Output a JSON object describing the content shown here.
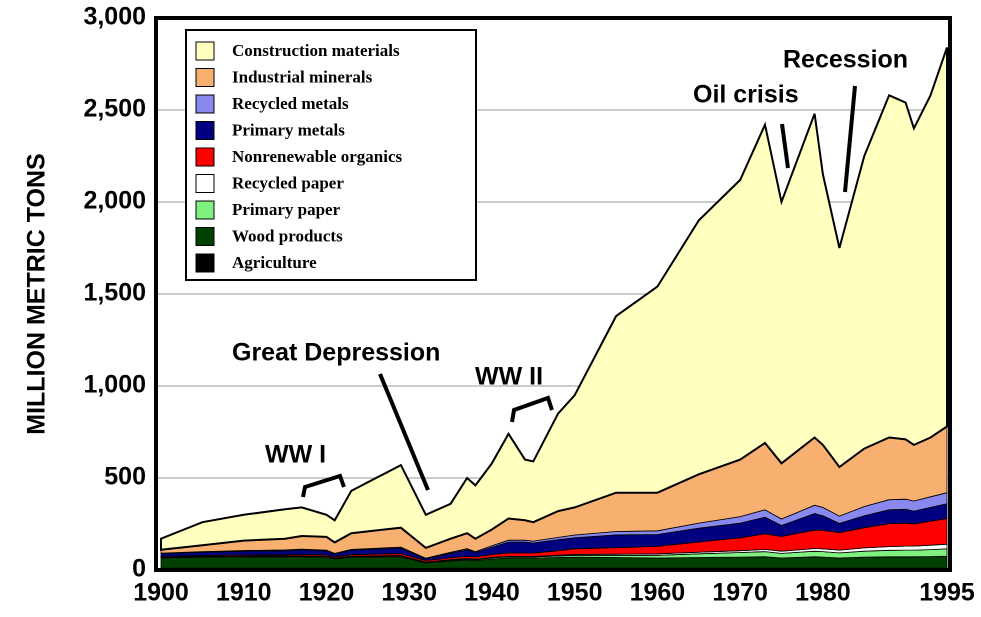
{
  "chart_data": {
    "type": "stacked-area",
    "y_label": "MILLION METRIC TONS",
    "x": [
      1900,
      1905,
      1910,
      1915,
      1917,
      1920,
      1921,
      1923,
      1929,
      1932,
      1935,
      1937,
      1938,
      1940,
      1942,
      1944,
      1945,
      1948,
      1950,
      1955,
      1960,
      1965,
      1970,
      1973,
      1975,
      1979,
      1980,
      1982,
      1985,
      1988,
      1990,
      1991,
      1993,
      1995
    ],
    "xlim": [
      1900,
      1995
    ],
    "xticks": [
      1900,
      1910,
      1920,
      1930,
      1940,
      1950,
      1960,
      1970,
      1980,
      1995
    ],
    "ylim": [
      0,
      3000
    ],
    "yticks": [
      0,
      500,
      {
        "value": 1000,
        "label": "1,000"
      },
      {
        "value": 1500,
        "label": "1,500"
      },
      {
        "value": 2000,
        "label": "2,000"
      },
      {
        "value": 2500,
        "label": "2,500"
      },
      {
        "value": 3000,
        "label": "3,000"
      }
    ],
    "grid": true,
    "legend": "upper left",
    "series": [
      {
        "name": "Construction materials",
        "color": "#ffffc0",
        "values": [
          60,
          125,
          140,
          160,
          155,
          120,
          120,
          230,
          340,
          180,
          190,
          300,
          290,
          360,
          460,
          330,
          330,
          530,
          610,
          960,
          1120,
          1380,
          1520,
          1730,
          1420,
          1760,
          1470,
          1190,
          1590,
          1860,
          1830,
          1720,
          1860,
          2060
        ]
      },
      {
        "name": "Industrial minerals",
        "color": "#f8b070",
        "values": [
          18,
          35,
          54,
          61,
          72,
          72,
          60,
          88,
          106,
          56,
          74,
          84,
          70,
          88,
          118,
          108,
          103,
          143,
          150,
          211,
          207,
          265,
          310,
          363,
          303,
          368,
          340,
          267,
          315,
          338,
          325,
          305,
          322,
          360
        ]
      },
      {
        "name": "Recycled metals",
        "color": "#8888ee",
        "values": [
          3,
          3,
          4,
          4,
          4,
          4,
          3,
          4,
          5,
          3,
          5,
          6,
          5,
          8,
          10,
          10,
          10,
          12,
          15,
          18,
          20,
          28,
          35,
          40,
          35,
          45,
          45,
          40,
          50,
          55,
          55,
          55,
          58,
          60
        ]
      },
      {
        "name": "Primary metals",
        "color": "#000080",
        "values": [
          15,
          18,
          20,
          22,
          25,
          22,
          15,
          25,
          30,
          10,
          25,
          35,
          25,
          40,
          60,
          60,
          55,
          60,
          60,
          70,
          65,
          75,
          80,
          90,
          60,
          90,
          80,
          50,
          65,
          75,
          75,
          70,
          75,
          80
        ]
      },
      {
        "name": "Nonrenewable organics",
        "color": "#ff0000",
        "values": [
          5,
          5,
          6,
          6,
          7,
          7,
          7,
          8,
          10,
          8,
          10,
          12,
          12,
          15,
          18,
          18,
          18,
          25,
          30,
          35,
          40,
          55,
          70,
          85,
          80,
          100,
          100,
          95,
          110,
          125,
          125,
          120,
          130,
          140
        ]
      },
      {
        "name": "Recycled paper",
        "color": "#ffffff",
        "values": [
          2,
          2,
          2,
          2,
          2,
          2,
          2,
          2,
          3,
          2,
          2,
          3,
          3,
          3,
          3,
          3,
          3,
          4,
          5,
          6,
          8,
          9,
          10,
          12,
          12,
          15,
          15,
          15,
          18,
          20,
          22,
          22,
          24,
          25
        ]
      },
      {
        "name": "Primary paper",
        "color": "#80f080",
        "values": [
          2,
          2,
          2,
          3,
          3,
          3,
          3,
          3,
          4,
          3,
          4,
          5,
          5,
          6,
          6,
          6,
          6,
          8,
          10,
          12,
          15,
          20,
          25,
          28,
          25,
          30,
          30,
          28,
          32,
          35,
          36,
          36,
          38,
          40
        ]
      },
      {
        "name": "Wood products",
        "color": "#004000",
        "values": [
          55,
          60,
          62,
          62,
          62,
          60,
          50,
          60,
          62,
          30,
          40,
          45,
          40,
          50,
          55,
          55,
          55,
          58,
          60,
          58,
          55,
          58,
          60,
          62,
          55,
          62,
          60,
          55,
          60,
          62,
          62,
          62,
          63,
          65
        ]
      },
      {
        "name": "Agriculture",
        "color": "#000000",
        "values": [
          10,
          10,
          10,
          10,
          10,
          10,
          10,
          10,
          10,
          8,
          10,
          10,
          10,
          10,
          10,
          10,
          10,
          10,
          10,
          10,
          10,
          10,
          10,
          10,
          10,
          10,
          10,
          10,
          10,
          10,
          10,
          10,
          10,
          10
        ]
      }
    ],
    "annotations": [
      "WW I",
      "Great Depression",
      "WW II",
      "Oil crisis",
      "Recession"
    ]
  }
}
